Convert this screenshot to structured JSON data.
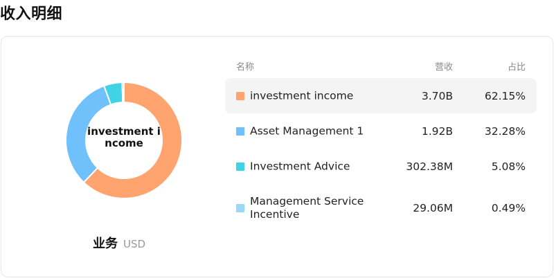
{
  "page": {
    "title": "收入明细"
  },
  "segment": {
    "title": "业务",
    "unit": "USD"
  },
  "donut": {
    "center_label": "investment income"
  },
  "table": {
    "headers": {
      "name": "名称",
      "revenue": "营收",
      "share": "占比"
    },
    "rows": [
      {
        "name": "investment income",
        "revenue": "3.70B",
        "share": "62.15%",
        "color": "#ffa46e"
      },
      {
        "name": "Asset Management 1",
        "revenue": "1.92B",
        "share": "32.28%",
        "color": "#6fc0fb"
      },
      {
        "name": "Investment Advice",
        "revenue": "302.38M",
        "share": "5.08%",
        "color": "#3fd3e5"
      },
      {
        "name": "Management Service Incentive",
        "revenue": "29.06M",
        "share": "0.49%",
        "color": "#9ad8f7"
      }
    ]
  },
  "chart_data": {
    "type": "pie",
    "categories": [
      "investment income",
      "Asset Management 1",
      "Investment Advice",
      "Management Service Incentive"
    ],
    "values": [
      62.15,
      32.28,
      5.08,
      0.49
    ],
    "colors": [
      "#ffa46e",
      "#6fc0fb",
      "#3fd3e5",
      "#9ad8f7"
    ],
    "title": "",
    "donut": true,
    "center_label": "investment income"
  }
}
